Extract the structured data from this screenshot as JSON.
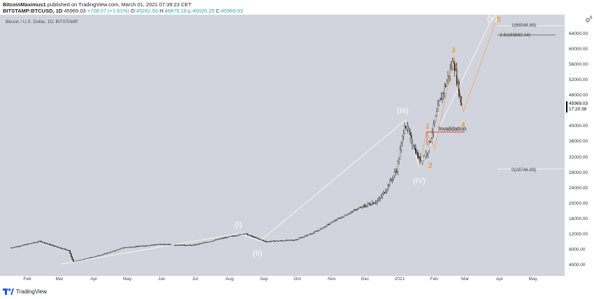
{
  "header": {
    "author": "BitcoinMaximus1",
    "published": "published on TradingView.com, March 01, 2021 07:39:23 CET",
    "symbol": "BITSTAMP:BTCUSD, 1D",
    "price": "45969.03",
    "change": "+728.07 (+1.61%)",
    "o_label": "O:",
    "o_val": "45261.50",
    "h_label": "H:",
    "h_val": "46875.18",
    "l_label": "L:",
    "l_val": "45020.25",
    "c_label": "C:",
    "c_val": "45969.03"
  },
  "chart_subtitle": "Bitcoin / U.S. Dollar, 1D, BITSTAMP",
  "price_box": {
    "price": "45969.03",
    "countdown": "17:20:38"
  },
  "y_ticks": [
    "64000.00",
    "60000.00",
    "56000.00",
    "52000.00",
    "48000.00",
    "44000.00",
    "40000.00",
    "36000.00",
    "32000.00",
    "28000.00",
    "24000.00",
    "20000.00",
    "16000.00",
    "12000.00",
    "8000.00",
    "4000.00"
  ],
  "y_top_partial": "6",
  "x_ticks": [
    "Feb",
    "Mar",
    "Apr",
    "May",
    "Jun",
    "Jul",
    "Aug",
    "Sep",
    "Oct",
    "Nov",
    "Dec",
    "2021",
    "Feb",
    "Mar",
    "Apr",
    "May"
  ],
  "fib": {
    "l1": "1(66548.89)",
    "l261": "2.61(63882.14)",
    "l0": "0(28746.69)"
  },
  "waves": {
    "I": "(I)",
    "II": "(II)",
    "III": "(III)",
    "IV": "(IV)",
    "V": "(V)",
    "s1": "1",
    "s2": "2",
    "s3": "3",
    "s4": "4",
    "s5": "5"
  },
  "invalidation": "Invalidation",
  "footer": {
    "brand": "TradingView"
  },
  "colors": {
    "plot_bg": "#d1d4dc",
    "wave_orange": "#f57c00",
    "invalidation_red": "#e53935",
    "wave_white": "#ffffff",
    "up_green": "#26a69a"
  },
  "chart_data": {
    "type": "line",
    "x": [
      "2020-01-20",
      "2020-02-15",
      "2020-03-12",
      "2020-03-16",
      "2020-04-30",
      "2020-06-01",
      "2020-07-01",
      "2020-07-27",
      "2020-08-17",
      "2020-09-05",
      "2020-10-01",
      "2020-10-21",
      "2020-11-05",
      "2020-11-25",
      "2020-12-16",
      "2021-01-01",
      "2021-01-08",
      "2021-01-22",
      "2021-01-28",
      "2021-02-08",
      "2021-02-21",
      "2021-02-28"
    ],
    "series": [
      {
        "values": [
          8600,
          10300,
          7900,
          5000,
          8600,
          9500,
          9200,
          11000,
          12300,
          10200,
          10600,
          12900,
          15500,
          18500,
          21000,
          29000,
          41000,
          31000,
          33500,
          46000,
          57500,
          45969
        ]
      }
    ],
    "ylim": [
      1000,
      68000
    ]
  }
}
